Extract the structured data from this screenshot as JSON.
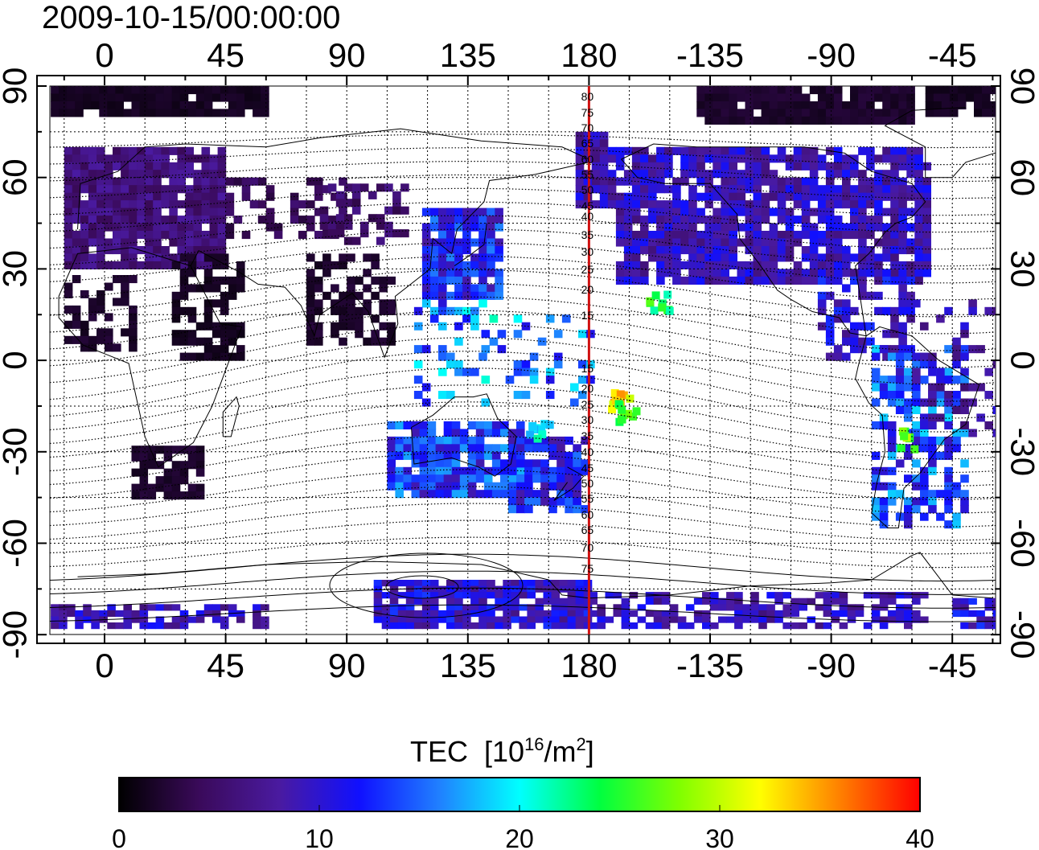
{
  "title": "2009-10-15/00:00:00",
  "map": {
    "top_lon_labels": [
      "0",
      "45",
      "90",
      "135",
      "180",
      "-135",
      "-90",
      "-45"
    ],
    "bottom_lon_labels": [
      "0",
      "45",
      "90",
      "135",
      "180",
      "-135",
      "-90",
      "-45"
    ],
    "left_lat_labels": [
      "90",
      "60",
      "30",
      "0",
      "-30",
      "-60",
      "-90"
    ],
    "right_lat_labels": [
      "90",
      "60",
      "30",
      "0",
      "-30",
      "-60",
      "-90"
    ],
    "meridian_lon": 180,
    "meridian_color": "#d01010",
    "meridian_labels": [
      "80",
      "75",
      "70",
      "65",
      "60",
      "55",
      "50",
      "45",
      "40",
      "35",
      "30",
      "25",
      "20",
      "15",
      "15",
      "20",
      "25",
      "30",
      "35",
      "40",
      "45",
      "50",
      "55",
      "60",
      "65",
      "70",
      "75"
    ]
  },
  "colorbar": {
    "title_main": "TEC",
    "title_unit_prefix": "[10",
    "title_exp": "16",
    "title_unit_mid": "/m",
    "title_exp2": "2",
    "title_unit_suffix": "]",
    "min": 0,
    "max": 40,
    "tick_labels": [
      "0",
      "10",
      "20",
      "30",
      "40"
    ],
    "colors": [
      "#000000",
      "#3a0a5a",
      "#4a1aa0",
      "#1010ff",
      "#2080ff",
      "#00ffff",
      "#00ff40",
      "#80ff00",
      "#ffff00",
      "#ff8000",
      "#ff0000"
    ]
  }
}
